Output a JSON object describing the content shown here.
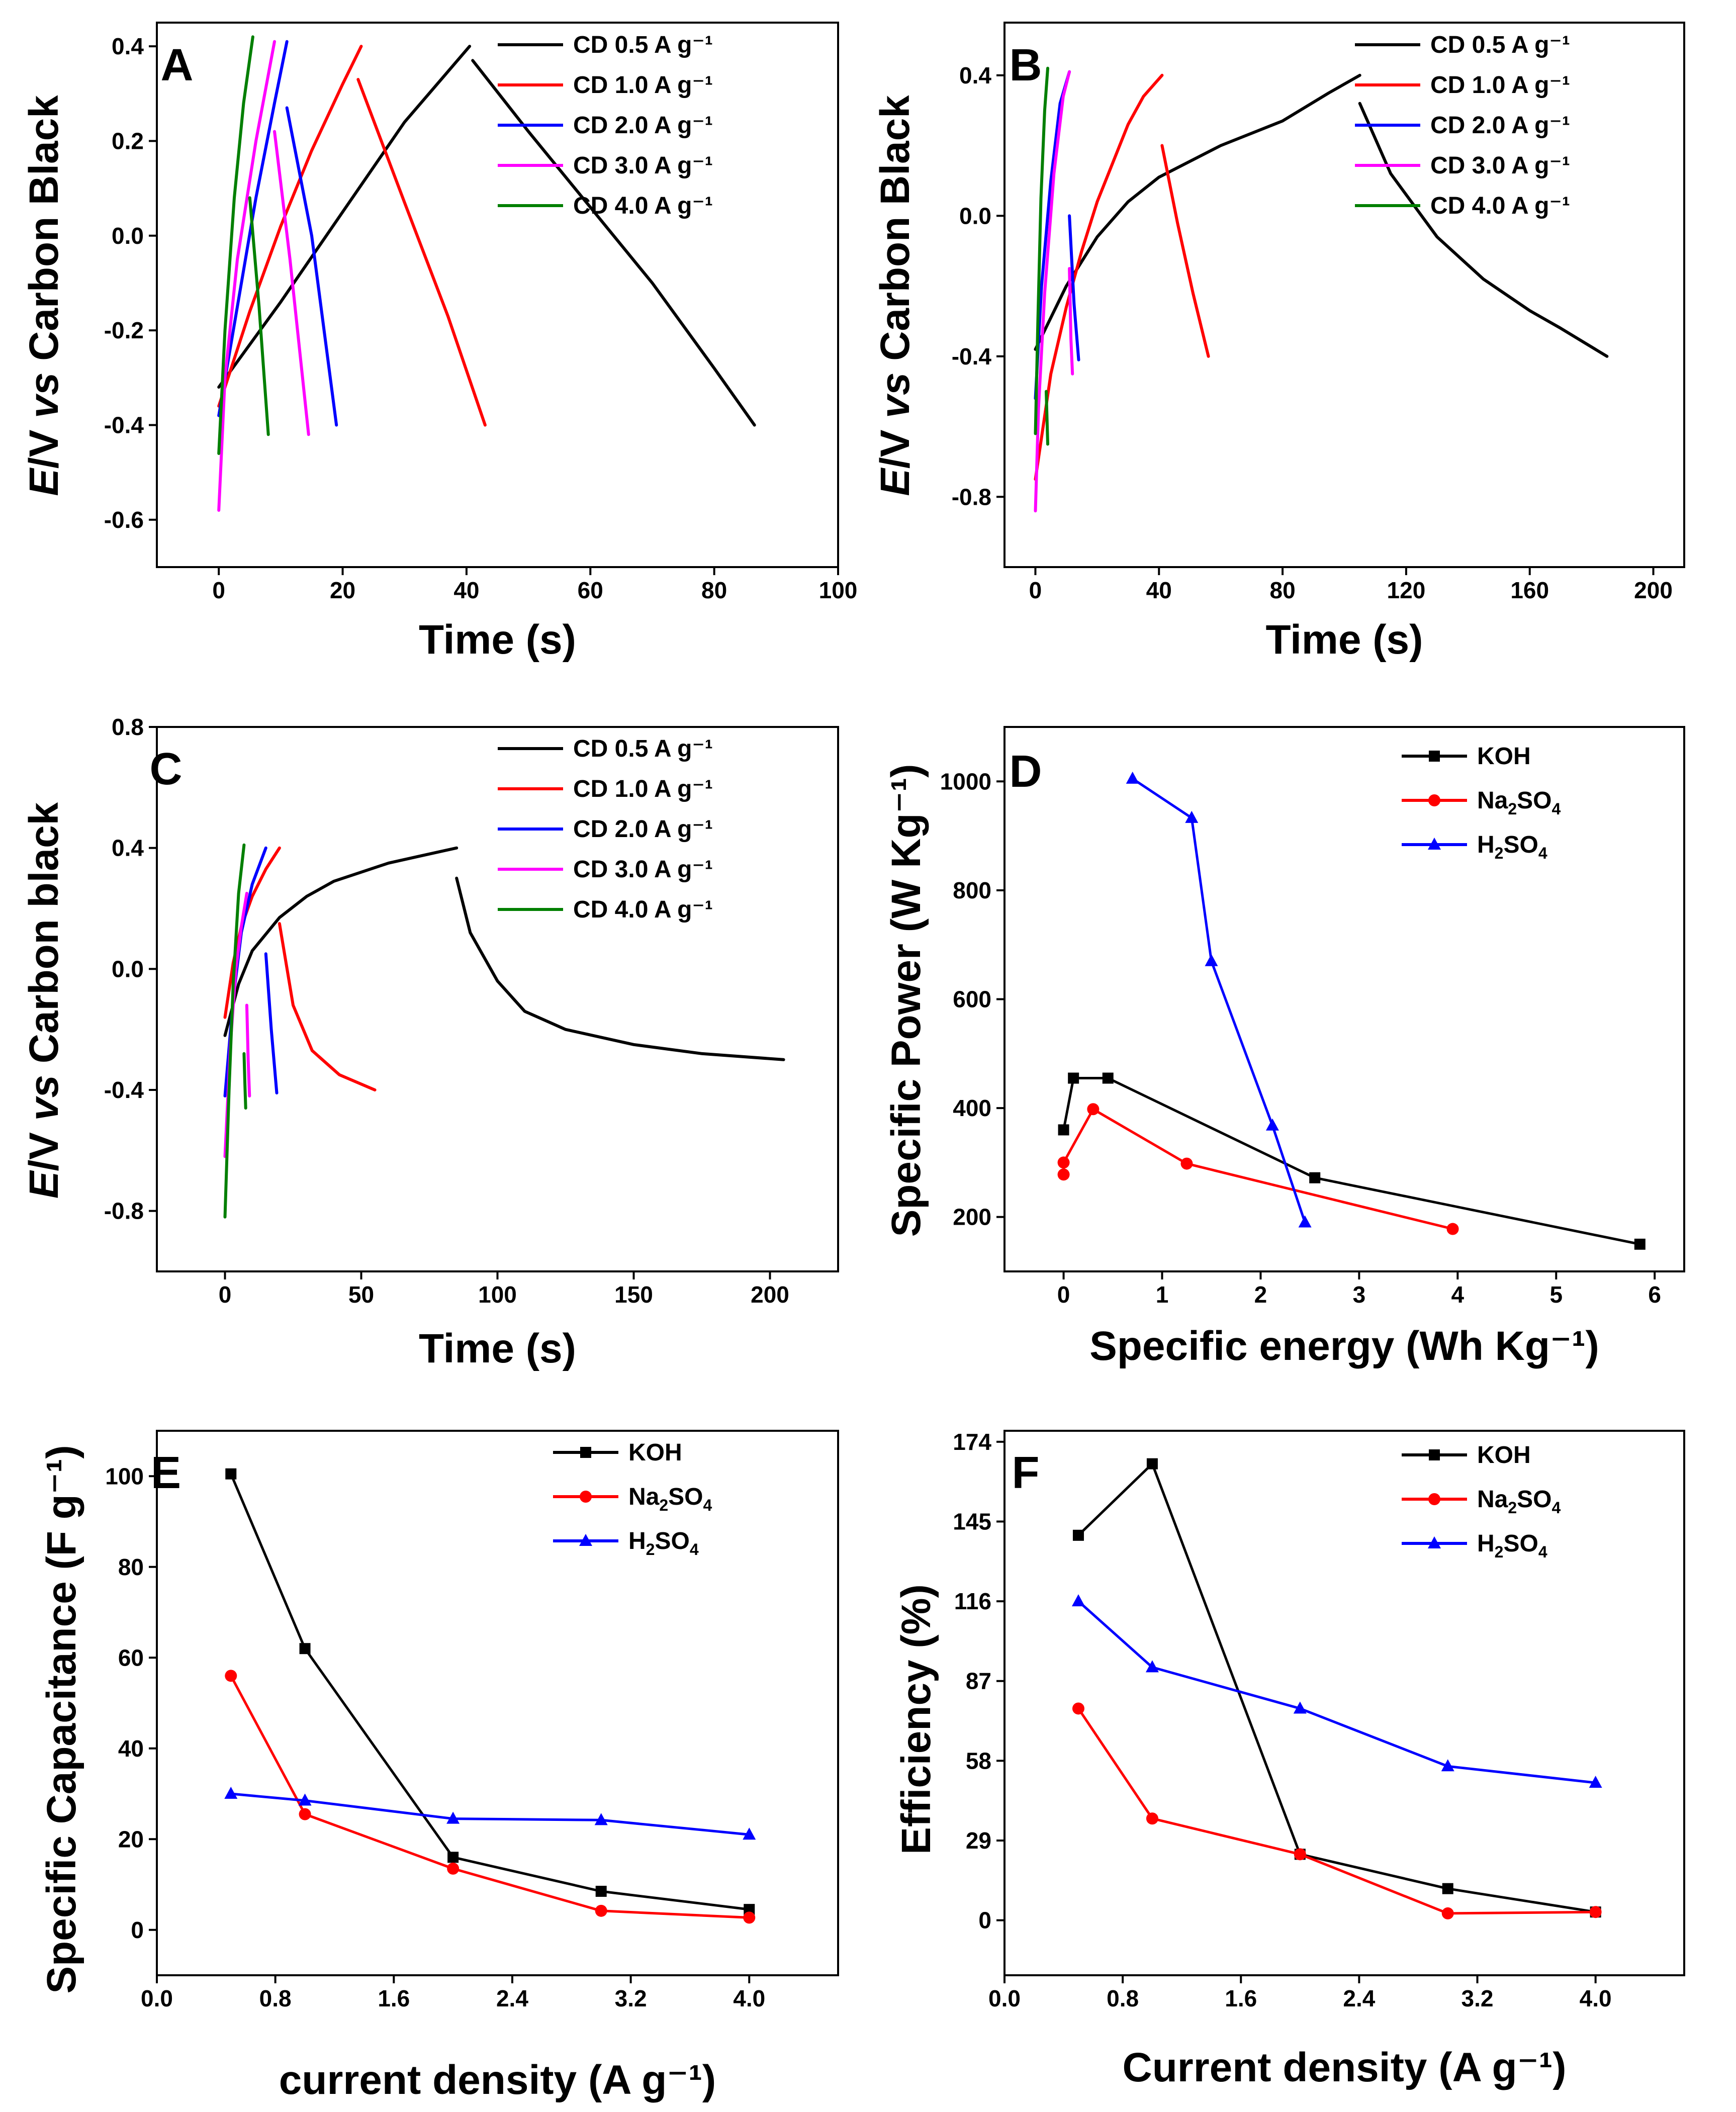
{
  "figure_title": "",
  "chart_data": [
    {
      "panel": "A",
      "type": "line",
      "xlabel": "Time (s)",
      "ylabel": "E/V vs Carbon Black",
      "xlim": [
        -10,
        100
      ],
      "ylim": [
        -0.7,
        0.45
      ],
      "xticks": [
        0,
        20,
        40,
        60,
        80,
        100
      ],
      "yticks": [
        -0.6,
        -0.4,
        -0.2,
        0.0,
        0.2,
        0.4
      ],
      "legend": "top-right",
      "series": [
        {
          "name": "CD 0.5 A g⁻¹",
          "color": "#000000",
          "segments": [
            [
              [
                0,
                -0.32
              ],
              [
                10,
                -0.14
              ],
              [
                20,
                0.05
              ],
              [
                30,
                0.24
              ],
              [
                40.5,
                0.4
              ]
            ],
            [
              [
                41,
                0.37
              ],
              [
                50,
                0.22
              ],
              [
                60,
                0.06
              ],
              [
                70,
                -0.1
              ],
              [
                80,
                -0.28
              ],
              [
                86.5,
                -0.4
              ]
            ]
          ]
        },
        {
          "name": "CD 1.0 A g⁻¹",
          "color": "#ff0000",
          "segments": [
            [
              [
                0,
                -0.36
              ],
              [
                5,
                -0.16
              ],
              [
                10,
                0.02
              ],
              [
                15,
                0.18
              ],
              [
                20,
                0.32
              ],
              [
                23,
                0.4
              ]
            ],
            [
              [
                22.5,
                0.33
              ],
              [
                30,
                0.07
              ],
              [
                37,
                -0.17
              ],
              [
                43,
                -0.4
              ]
            ]
          ]
        },
        {
          "name": "CD 2.0 A g⁻¹",
          "color": "#0000ff",
          "segments": [
            [
              [
                0,
                -0.38
              ],
              [
                3,
                -0.15
              ],
              [
                6,
                0.08
              ],
              [
                9,
                0.28
              ],
              [
                11,
                0.41
              ]
            ],
            [
              [
                11,
                0.27
              ],
              [
                15,
                0.0
              ],
              [
                19,
                -0.4
              ]
            ]
          ]
        },
        {
          "name": "CD 3.0 A g⁻¹",
          "color": "#ff00ff",
          "segments": [
            [
              [
                0,
                -0.58
              ],
              [
                1,
                -0.3
              ],
              [
                3,
                -0.05
              ],
              [
                6,
                0.2
              ],
              [
                9,
                0.41
              ]
            ],
            [
              [
                9,
                0.22
              ],
              [
                11.5,
                -0.05
              ],
              [
                14.5,
                -0.42
              ]
            ]
          ]
        },
        {
          "name": "CD 4.0 A g⁻¹",
          "color": "#007f00",
          "segments": [
            [
              [
                0,
                -0.46
              ],
              [
                1,
                -0.2
              ],
              [
                2.5,
                0.08
              ],
              [
                4,
                0.28
              ],
              [
                5.5,
                0.42
              ]
            ],
            [
              [
                5,
                0.08
              ],
              [
                6.5,
                -0.15
              ],
              [
                8,
                -0.42
              ]
            ]
          ]
        }
      ]
    },
    {
      "panel": "B",
      "type": "line",
      "xlabel": "Time (s)",
      "ylabel": "E/V vs Carbon Black",
      "xlim": [
        -10,
        210
      ],
      "ylim": [
        -1.0,
        0.55
      ],
      "xticks": [
        0,
        40,
        80,
        120,
        160,
        200
      ],
      "yticks": [
        -0.8,
        -0.4,
        0.0,
        0.4
      ],
      "legend": "top-right",
      "series": [
        {
          "name": "CD 0.5 A g⁻¹",
          "color": "#000000",
          "segments": [
            [
              [
                0,
                -0.38
              ],
              [
                10,
                -0.2
              ],
              [
                20,
                -0.06
              ],
              [
                30,
                0.04
              ],
              [
                40,
                0.11
              ],
              [
                60,
                0.2
              ],
              [
                80,
                0.27
              ],
              [
                95,
                0.35
              ],
              [
                105,
                0.4
              ]
            ],
            [
              [
                105,
                0.32
              ],
              [
                115,
                0.12
              ],
              [
                130,
                -0.06
              ],
              [
                145,
                -0.18
              ],
              [
                160,
                -0.27
              ],
              [
                170,
                -0.32
              ],
              [
                185,
                -0.4
              ]
            ]
          ]
        },
        {
          "name": "CD 1.0 A g⁻¹",
          "color": "#ff0000",
          "segments": [
            [
              [
                0,
                -0.75
              ],
              [
                5,
                -0.45
              ],
              [
                10,
                -0.26
              ],
              [
                15,
                -0.1
              ],
              [
                20,
                0.04
              ],
              [
                25,
                0.15
              ],
              [
                30,
                0.26
              ],
              [
                35,
                0.34
              ],
              [
                41,
                0.4
              ]
            ],
            [
              [
                41,
                0.2
              ],
              [
                46,
                -0.02
              ],
              [
                51,
                -0.22
              ],
              [
                56,
                -0.4
              ]
            ]
          ]
        },
        {
          "name": "CD 2.0 A g⁻¹",
          "color": "#0000ff",
          "segments": [
            [
              [
                0,
                -0.52
              ],
              [
                2,
                -0.2
              ],
              [
                5,
                0.1
              ],
              [
                8,
                0.32
              ],
              [
                11,
                0.41
              ]
            ],
            [
              [
                11,
                0.0
              ],
              [
                12.5,
                -0.25
              ],
              [
                14,
                -0.41
              ]
            ]
          ]
        },
        {
          "name": "CD 3.0 A g⁻¹",
          "color": "#ff00ff",
          "segments": [
            [
              [
                0,
                -0.84
              ],
              [
                1,
                -0.55
              ],
              [
                3,
                -0.22
              ],
              [
                6,
                0.12
              ],
              [
                9,
                0.34
              ],
              [
                11,
                0.41
              ]
            ],
            [
              [
                11,
                -0.15
              ],
              [
                11.5,
                -0.35
              ],
              [
                12,
                -0.45
              ]
            ]
          ]
        },
        {
          "name": "CD 4.0 A g⁻¹",
          "color": "#007f00",
          "segments": [
            [
              [
                0,
                -0.62
              ],
              [
                0.8,
                -0.3
              ],
              [
                1.8,
                0.05
              ],
              [
                3,
                0.3
              ],
              [
                4,
                0.42
              ]
            ],
            [
              [
                3.5,
                -0.5
              ],
              [
                4,
                -0.65
              ]
            ]
          ]
        }
      ]
    },
    {
      "panel": "C",
      "type": "line",
      "xlabel": "Time (s)",
      "ylabel": "E/V vs Carbon black",
      "xlim": [
        -25,
        225
      ],
      "ylim": [
        -1.0,
        0.8
      ],
      "xticks": [
        0,
        50,
        100,
        150,
        200
      ],
      "yticks": [
        -0.8,
        -0.4,
        0.0,
        0.4,
        0.8
      ],
      "legend": "top-right",
      "series": [
        {
          "name": "CD 0.5 A g⁻¹",
          "color": "#000000",
          "segments": [
            [
              [
                0,
                -0.22
              ],
              [
                5,
                -0.05
              ],
              [
                10,
                0.06
              ],
              [
                20,
                0.17
              ],
              [
                30,
                0.24
              ],
              [
                40,
                0.29
              ],
              [
                50,
                0.32
              ],
              [
                60,
                0.35
              ],
              [
                70,
                0.37
              ],
              [
                85,
                0.4
              ]
            ],
            [
              [
                85,
                0.3
              ],
              [
                90,
                0.12
              ],
              [
                100,
                -0.04
              ],
              [
                110,
                -0.14
              ],
              [
                125,
                -0.2
              ],
              [
                150,
                -0.25
              ],
              [
                175,
                -0.28
              ],
              [
                205,
                -0.3
              ]
            ]
          ]
        },
        {
          "name": "CD 1.0 A g⁻¹",
          "color": "#ff0000",
          "segments": [
            [
              [
                0,
                -0.16
              ],
              [
                3,
                0.02
              ],
              [
                6,
                0.14
              ],
              [
                10,
                0.24
              ],
              [
                15,
                0.33
              ],
              [
                20,
                0.4
              ]
            ],
            [
              [
                20,
                0.15
              ],
              [
                25,
                -0.12
              ],
              [
                32,
                -0.27
              ],
              [
                42,
                -0.35
              ],
              [
                55,
                -0.4
              ]
            ]
          ]
        },
        {
          "name": "CD 2.0 A g⁻¹",
          "color": "#0000ff",
          "segments": [
            [
              [
                0,
                -0.42
              ],
              [
                3,
                -0.1
              ],
              [
                6,
                0.12
              ],
              [
                10,
                0.28
              ],
              [
                15,
                0.4
              ]
            ],
            [
              [
                15,
                0.05
              ],
              [
                17,
                -0.2
              ],
              [
                19,
                -0.41
              ]
            ]
          ]
        },
        {
          "name": "CD 3.0 A g⁻¹",
          "color": "#ff00ff",
          "segments": [
            [
              [
                0,
                -0.62
              ],
              [
                2,
                -0.25
              ],
              [
                4,
                0.0
              ],
              [
                6,
                0.14
              ],
              [
                8,
                0.25
              ]
            ],
            [
              [
                8,
                -0.12
              ],
              [
                8.5,
                -0.3
              ],
              [
                9,
                -0.42
              ]
            ]
          ]
        },
        {
          "name": "CD 4.0 A g⁻¹",
          "color": "#007f00",
          "segments": [
            [
              [
                0,
                -0.82
              ],
              [
                1.5,
                -0.4
              ],
              [
                3,
                -0.05
              ],
              [
                5,
                0.25
              ],
              [
                7,
                0.41
              ]
            ],
            [
              [
                7,
                -0.28
              ],
              [
                7.3,
                -0.38
              ],
              [
                7.6,
                -0.46
              ]
            ]
          ]
        }
      ]
    },
    {
      "panel": "D",
      "type": "line",
      "xlabel": "Specific energy (Wh Kg⁻¹)",
      "ylabel": "Specific Power (W Kg⁻¹)",
      "xlim": [
        -0.6,
        6.3
      ],
      "ylim": [
        100,
        1100
      ],
      "xticks": [
        0,
        1,
        2,
        3,
        4,
        5,
        6
      ],
      "yticks": [
        200,
        400,
        600,
        800,
        1000
      ],
      "legend": "top-right",
      "series": [
        {
          "name": "KOH",
          "color": "#000000",
          "marker": "square",
          "x": [
            0.0,
            0.1,
            0.45,
            2.55,
            5.85
          ],
          "y": [
            360,
            455,
            455,
            272,
            150
          ]
        },
        {
          "name": "Na2SO4",
          "color": "#ff0000",
          "marker": "circle",
          "x": [
            0.0,
            0.0,
            0.3,
            1.25,
            3.95
          ],
          "y": [
            278,
            300,
            398,
            298,
            178
          ]
        },
        {
          "name": "H2SO4",
          "color": "#0000ff",
          "marker": "triangle",
          "x": [
            0.7,
            1.3,
            1.5,
            2.12,
            2.45
          ],
          "y": [
            1005,
            933,
            670,
            368,
            190
          ]
        }
      ]
    },
    {
      "panel": "E",
      "type": "line",
      "xlabel": "current density (A g⁻¹)",
      "ylabel": "Specific Capacitance (F g⁻¹)",
      "xlim": [
        0.0,
        4.6
      ],
      "ylim": [
        -10,
        110
      ],
      "xticks": [
        0.0,
        0.8,
        1.6,
        2.4,
        3.2,
        4.0
      ],
      "yticks": [
        0,
        20,
        40,
        60,
        80,
        100
      ],
      "legend": "top-right",
      "series": [
        {
          "name": "KOH",
          "color": "#000000",
          "marker": "square",
          "x": [
            0.5,
            1.0,
            2.0,
            3.0,
            4.0
          ],
          "y": [
            100.5,
            62,
            16,
            8.5,
            4.5
          ]
        },
        {
          "name": "Na2SO4",
          "color": "#ff0000",
          "marker": "circle",
          "x": [
            0.5,
            1.0,
            2.0,
            3.0,
            4.0
          ],
          "y": [
            56,
            25.5,
            13.5,
            4.2,
            2.7
          ]
        },
        {
          "name": "H2SO4",
          "color": "#0000ff",
          "marker": "triangle",
          "x": [
            0.5,
            1.0,
            2.0,
            3.0,
            4.0
          ],
          "y": [
            30,
            28.5,
            24.5,
            24.2,
            21
          ]
        }
      ]
    },
    {
      "panel": "F",
      "type": "line",
      "xlabel": "Current density (A g⁻¹)",
      "ylabel": "Efficiency (%)",
      "xlim": [
        0.0,
        4.6
      ],
      "ylim": [
        -20,
        178
      ],
      "xticks": [
        0.0,
        0.8,
        1.6,
        2.4,
        3.2,
        4.0
      ],
      "yticks": [
        0,
        29,
        58,
        87,
        116,
        145,
        174
      ],
      "legend": "top-right",
      "series": [
        {
          "name": "KOH",
          "color": "#000000",
          "marker": "square",
          "x": [
            0.5,
            1.0,
            2.0,
            3.0,
            4.0
          ],
          "y": [
            140,
            166,
            24,
            11.5,
            3
          ]
        },
        {
          "name": "Na2SO4",
          "color": "#ff0000",
          "marker": "circle",
          "x": [
            0.5,
            1.0,
            2.0,
            3.0,
            4.0
          ],
          "y": [
            77,
            37,
            24,
            2.5,
            3
          ]
        },
        {
          "name": "H2SO4",
          "color": "#0000ff",
          "marker": "triangle",
          "x": [
            0.5,
            1.0,
            2.0,
            3.0,
            4.0
          ],
          "y": [
            116,
            92,
            77,
            56,
            50
          ]
        }
      ]
    }
  ]
}
